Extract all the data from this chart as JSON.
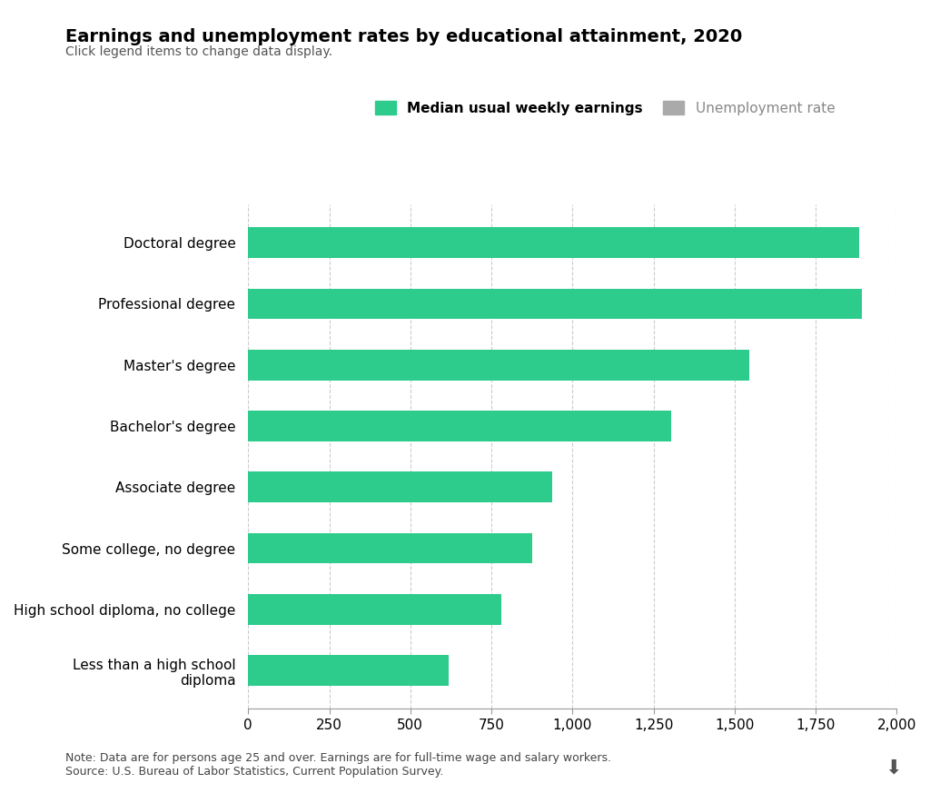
{
  "title": "Earnings and unemployment rates by educational attainment, 2020",
  "subtitle": "Click legend items to change data display.",
  "categories": [
    "Doctoral degree",
    "Professional degree",
    "Master's degree",
    "Bachelor's degree",
    "Associate degree",
    "Some college, no degree",
    "High school diploma, no college",
    "Less than a high school\ndiploma"
  ],
  "values": [
    1885,
    1893,
    1545,
    1305,
    938,
    877,
    781,
    619
  ],
  "bar_color": "#2dcb8c",
  "legend_green_label": "Median usual weekly earnings",
  "legend_gray_label": "Unemployment rate",
  "legend_gray_color": "#aaaaaa",
  "xlim": [
    0,
    2000
  ],
  "xticks": [
    0,
    250,
    500,
    750,
    1000,
    1250,
    1500,
    1750,
    2000
  ],
  "xticklabels": [
    "0",
    "250",
    "500",
    "750",
    "1,000",
    "1,250",
    "1,500",
    "1,750",
    "2,000"
  ],
  "note": "Note: Data are for persons age 25 and over. Earnings are for full-time wage and salary workers.\nSource: U.S. Bureau of Labor Statistics, Current Population Survey.",
  "background_color": "#ffffff",
  "grid_color": "#cccccc",
  "title_fontsize": 14,
  "subtitle_fontsize": 10,
  "tick_fontsize": 11,
  "label_fontsize": 11,
  "note_fontsize": 9,
  "bar_height": 0.5
}
